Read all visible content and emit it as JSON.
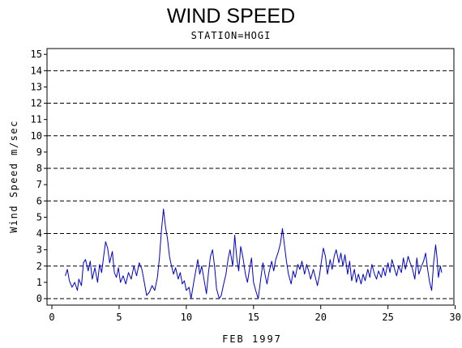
{
  "header": {
    "title": "WIND SPEED",
    "subtitle": "STATION=HOGI"
  },
  "colors": {
    "series": "#0000cc",
    "axis": "#000000",
    "grid": "#000000"
  },
  "chart_data": {
    "type": "line",
    "title": "WIND SPEED",
    "subtitle": "STATION=HOGI",
    "xlabel": "FEB 1997",
    "ylabel": "Wind Speed m/sec",
    "xlim": [
      0,
      30
    ],
    "ylim": [
      0,
      15.5
    ],
    "x_ticks": [
      0,
      5,
      10,
      15,
      20,
      25,
      30
    ],
    "y_ticks": [
      0,
      1,
      2,
      3,
      4,
      5,
      6,
      7,
      8,
      9,
      10,
      11,
      12,
      13,
      14,
      15
    ],
    "grid": "dashed horizontal at 2,4,6,8,10,12,14",
    "grid_lines": [
      2,
      4,
      6,
      8,
      10,
      12,
      14
    ],
    "legend": "none",
    "series": [
      {
        "values": [
          [
            1.0,
            1.4
          ],
          [
            1.15,
            1.8
          ],
          [
            1.3,
            1.1
          ],
          [
            1.5,
            0.7
          ],
          [
            1.7,
            1.0
          ],
          [
            1.9,
            0.5
          ],
          [
            2.0,
            1.2
          ],
          [
            2.2,
            0.8
          ],
          [
            2.35,
            2.2
          ],
          [
            2.5,
            2.4
          ],
          [
            2.7,
            1.7
          ],
          [
            2.85,
            2.3
          ],
          [
            3.0,
            1.2
          ],
          [
            3.2,
            1.9
          ],
          [
            3.4,
            1.0
          ],
          [
            3.55,
            2.1
          ],
          [
            3.7,
            1.6
          ],
          [
            3.85,
            2.6
          ],
          [
            4.0,
            3.5
          ],
          [
            4.15,
            3.1
          ],
          [
            4.3,
            2.2
          ],
          [
            4.5,
            2.9
          ],
          [
            4.65,
            1.6
          ],
          [
            4.8,
            1.3
          ],
          [
            4.95,
            1.9
          ],
          [
            5.1,
            1.0
          ],
          [
            5.3,
            1.4
          ],
          [
            5.5,
            0.9
          ],
          [
            5.7,
            1.6
          ],
          [
            5.9,
            1.2
          ],
          [
            6.1,
            2.0
          ],
          [
            6.3,
            1.4
          ],
          [
            6.5,
            2.2
          ],
          [
            6.7,
            1.8
          ],
          [
            6.9,
            0.9
          ],
          [
            7.05,
            0.2
          ],
          [
            7.25,
            0.4
          ],
          [
            7.45,
            0.8
          ],
          [
            7.65,
            0.5
          ],
          [
            7.85,
            1.3
          ],
          [
            8.0,
            2.5
          ],
          [
            8.15,
            4.2
          ],
          [
            8.3,
            5.5
          ],
          [
            8.45,
            4.4
          ],
          [
            8.6,
            3.7
          ],
          [
            8.75,
            2.6
          ],
          [
            8.9,
            2.0
          ],
          [
            9.05,
            1.5
          ],
          [
            9.2,
            1.9
          ],
          [
            9.4,
            1.2
          ],
          [
            9.55,
            1.6
          ],
          [
            9.7,
            0.9
          ],
          [
            9.85,
            1.1
          ],
          [
            10.0,
            0.5
          ],
          [
            10.2,
            0.7
          ],
          [
            10.35,
            0.0
          ],
          [
            10.55,
            1.0
          ],
          [
            10.7,
            1.7
          ],
          [
            10.85,
            2.4
          ],
          [
            11.0,
            1.5
          ],
          [
            11.15,
            2.0
          ],
          [
            11.35,
            1.0
          ],
          [
            11.5,
            0.3
          ],
          [
            11.65,
            1.6
          ],
          [
            11.8,
            2.6
          ],
          [
            11.95,
            3.0
          ],
          [
            12.1,
            2.0
          ],
          [
            12.25,
            0.6
          ],
          [
            12.45,
            0.0
          ],
          [
            12.6,
            0.2
          ],
          [
            12.75,
            0.8
          ],
          [
            12.95,
            1.5
          ],
          [
            13.1,
            2.4
          ],
          [
            13.25,
            3.0
          ],
          [
            13.45,
            2.0
          ],
          [
            13.6,
            3.9
          ],
          [
            13.75,
            2.5
          ],
          [
            13.9,
            1.7
          ],
          [
            14.05,
            3.2
          ],
          [
            14.2,
            2.6
          ],
          [
            14.4,
            1.5
          ],
          [
            14.55,
            1.0
          ],
          [
            14.7,
            1.8
          ],
          [
            14.85,
            2.5
          ],
          [
            15.0,
            1.0
          ],
          [
            15.2,
            0.4
          ],
          [
            15.35,
            0.0
          ],
          [
            15.55,
            1.3
          ],
          [
            15.7,
            2.2
          ],
          [
            15.85,
            1.5
          ],
          [
            16.0,
            0.9
          ],
          [
            16.15,
            1.6
          ],
          [
            16.35,
            2.3
          ],
          [
            16.5,
            1.7
          ],
          [
            16.65,
            2.4
          ],
          [
            16.85,
            2.9
          ],
          [
            17.0,
            3.4
          ],
          [
            17.15,
            4.3
          ],
          [
            17.3,
            3.3
          ],
          [
            17.45,
            2.3
          ],
          [
            17.6,
            1.5
          ],
          [
            17.8,
            0.9
          ],
          [
            17.95,
            1.7
          ],
          [
            18.1,
            1.3
          ],
          [
            18.3,
            2.1
          ],
          [
            18.45,
            1.8
          ],
          [
            18.6,
            2.3
          ],
          [
            18.8,
            1.5
          ],
          [
            18.95,
            2.1
          ],
          [
            19.1,
            1.7
          ],
          [
            19.25,
            1.2
          ],
          [
            19.45,
            1.8
          ],
          [
            19.6,
            1.3
          ],
          [
            19.75,
            0.8
          ],
          [
            19.9,
            1.4
          ],
          [
            20.05,
            2.3
          ],
          [
            20.2,
            3.1
          ],
          [
            20.35,
            2.6
          ],
          [
            20.5,
            1.5
          ],
          [
            20.7,
            2.4
          ],
          [
            20.85,
            1.8
          ],
          [
            21.0,
            2.6
          ],
          [
            21.15,
            3.0
          ],
          [
            21.35,
            2.2
          ],
          [
            21.5,
            2.8
          ],
          [
            21.65,
            2.0
          ],
          [
            21.8,
            2.7
          ],
          [
            22.0,
            1.5
          ],
          [
            22.15,
            2.3
          ],
          [
            22.3,
            1.1
          ],
          [
            22.5,
            1.8
          ],
          [
            22.65,
            1.0
          ],
          [
            22.8,
            1.5
          ],
          [
            23.0,
            0.9
          ],
          [
            23.15,
            1.5
          ],
          [
            23.3,
            1.1
          ],
          [
            23.5,
            1.8
          ],
          [
            23.65,
            1.3
          ],
          [
            23.8,
            2.1
          ],
          [
            24.0,
            1.5
          ],
          [
            24.15,
            1.2
          ],
          [
            24.3,
            1.7
          ],
          [
            24.5,
            1.3
          ],
          [
            24.65,
            1.9
          ],
          [
            24.8,
            1.4
          ],
          [
            25.0,
            2.2
          ],
          [
            25.15,
            1.6
          ],
          [
            25.3,
            2.4
          ],
          [
            25.5,
            1.8
          ],
          [
            25.65,
            1.4
          ],
          [
            25.8,
            2.0
          ],
          [
            26.0,
            1.6
          ],
          [
            26.15,
            2.5
          ],
          [
            26.3,
            1.8
          ],
          [
            26.5,
            2.6
          ],
          [
            26.65,
            2.2
          ],
          [
            26.8,
            1.9
          ],
          [
            27.0,
            1.2
          ],
          [
            27.15,
            2.5
          ],
          [
            27.3,
            1.5
          ],
          [
            27.5,
            2.0
          ],
          [
            27.65,
            2.3
          ],
          [
            27.8,
            2.8
          ],
          [
            27.95,
            1.8
          ],
          [
            28.1,
            1.0
          ],
          [
            28.25,
            0.5
          ],
          [
            28.4,
            2.2
          ],
          [
            28.55,
            3.3
          ],
          [
            28.65,
            2.5
          ],
          [
            28.75,
            1.3
          ],
          [
            28.9,
            2.0
          ],
          [
            29.0,
            1.6
          ]
        ]
      }
    ]
  }
}
